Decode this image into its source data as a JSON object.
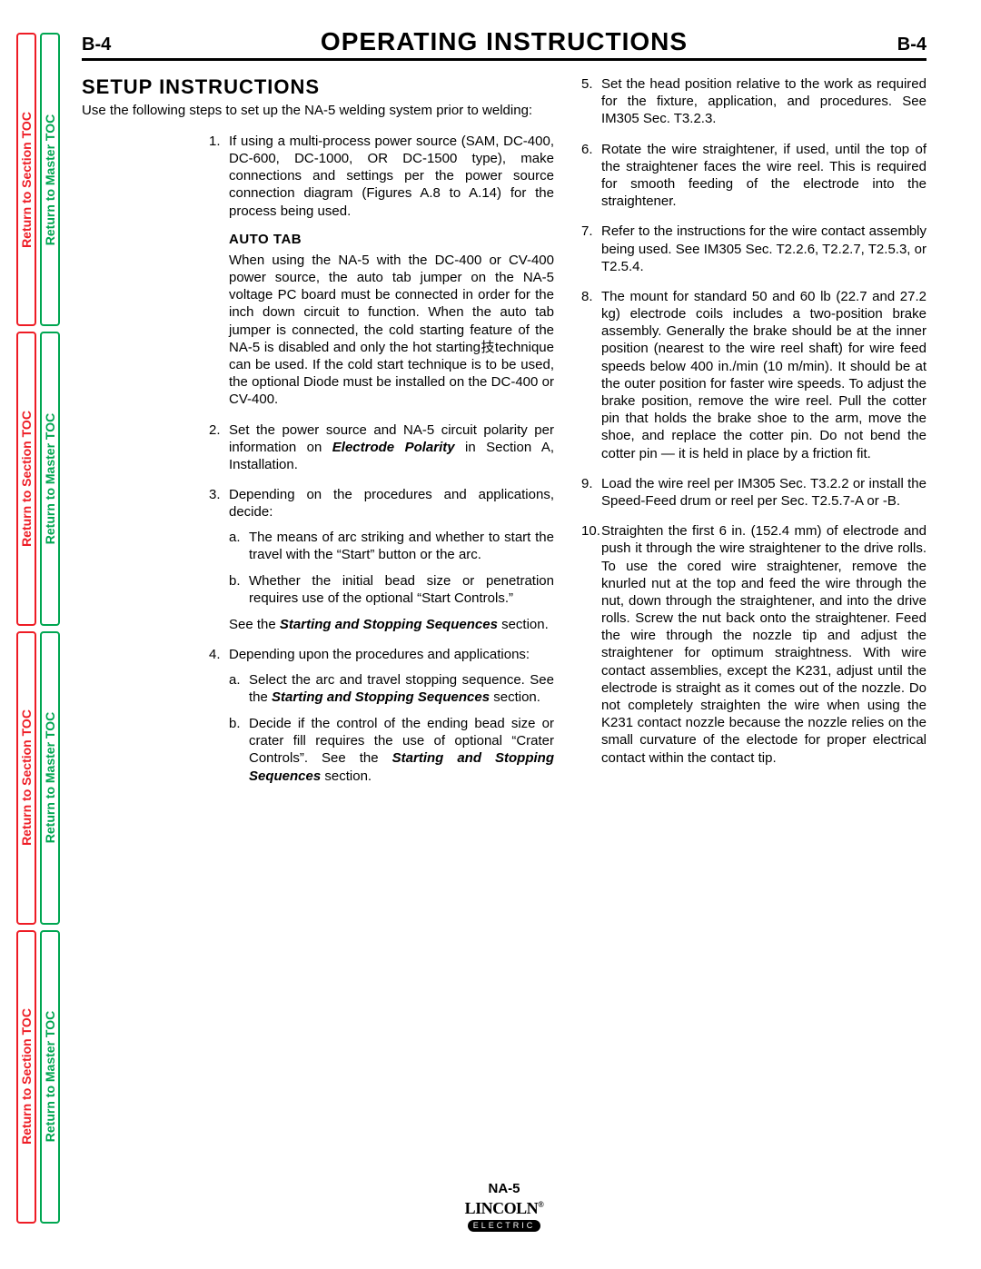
{
  "page_number": "B-4",
  "main_title": "OPERATING  INSTRUCTIONS",
  "side_tabs": {
    "red_label": "Return to Section TOC",
    "green_label": "Return to Master TOC",
    "red_color": "#ee1c25",
    "green_color": "#00a651"
  },
  "section_title": "SETUP  INSTRUCTIONS",
  "intro": "Use the following steps to set up the NA-5 welding system prior to welding:",
  "auto_tab_heading": "AUTO  TAB",
  "auto_tab_body": "When using the NA-5 with the DC-400 or CV-400 power source, the auto tab jumper on the NA-5 voltage PC board must be connected in order for the inch down circuit to function. When the auto tab jumper is connected, the cold starting feature of the NA-5 is disabled and only the hot starting技technique can be used. If the cold start technique is to be used, the optional Diode must be installed on the DC-400 or CV-400.",
  "steps_left": {
    "s1": "If using a multi-process power source (SAM, DC-400, DC-600, DC-1000, OR DC-1500 type), make connections and settings per the power source connection diagram (Figures A.8 to A.14) for the process being used.",
    "s2_pre": "Set the power source and NA-5 circuit polarity per information on ",
    "s2_bi": "Electrode Polarity",
    "s2_post": " in Section A, Installation.",
    "s3": "Depending on the procedures and applications, decide:",
    "s3a": "The means of arc striking and whether to start the travel with the “Start” button or the arc.",
    "s3b": "Whether the initial bead size or penetration requires use of the optional “Start Controls.”",
    "see_pre": "See the ",
    "see_bi": "Starting and Stopping Sequences",
    "see_post": " section.",
    "s4": "Depending upon the procedures and applications:",
    "s4a_pre": "Select the arc and travel stopping sequence. See the ",
    "s4a_bi": "Starting and Stopping Sequences",
    "s4a_post": " section.",
    "s4b_pre": "Decide if the control of the ending bead size or crater fill requires the use of optional “Crater Controls”. See the ",
    "s4b_bi": "Starting and Stopping Sequences",
    "s4b_post": " section."
  },
  "steps_right": {
    "s5": "Set the head position relative to the work as required for the fixture, application, and procedures. See IM305 Sec. T3.2.3.",
    "s6": "Rotate the wire straightener, if used, until the top of the straightener faces the wire reel. This is required for smooth feeding of the electrode into the straightener.",
    "s7": "Refer to the instructions for the wire contact assembly being used. See IM305 Sec. T2.2.6, T2.2.7, T2.5.3, or T2.5.4.",
    "s8": "The mount for standard 50 and 60 lb (22.7 and 27.2 kg) electrode coils includes a two-position brake assembly. Generally the brake should be at the inner position (nearest to the wire reel shaft) for wire feed speeds below 400 in./min (10 m/min). It should be at the outer position for faster wire speeds. To adjust the brake position, remove the wire reel. Pull the cotter pin that holds the brake shoe to the arm, move the shoe, and replace the cotter pin. Do not bend the cotter pin — it is held in place by a friction fit.",
    "s9": "Load the wire reel per IM305 Sec. T3.2.2 or install the Speed-Feed drum or reel per Sec. T2.5.7-A or -B.",
    "s10": "Straighten the first 6 in. (152.4 mm) of electrode and push it through the wire straightener to the drive rolls. To use the cored wire straightener, remove the knurled nut at the top and feed the wire through the nut, down through the straightener, and into the drive rolls. Screw the nut back onto the straightener. Feed the wire through the nozzle tip and adjust the straightener for optimum straightness. With wire contact assemblies, except the K231, adjust until the electrode is straight as it comes out of the nozzle.  Do not completely straighten the wire when using the K231 contact nozzle because the nozzle relies on the small curvature of the electode for proper electrical contact within the contact tip."
  },
  "footer": {
    "model": "NA-5",
    "brand_top": "LINCOLN",
    "brand_bot": "ELECTRIC"
  },
  "style": {
    "page_bg": "#ffffff",
    "text_color": "#000000",
    "title_fontsize": 28,
    "subhead_fontsize": 22,
    "body_fontsize": 15,
    "rule_color": "#000000"
  }
}
